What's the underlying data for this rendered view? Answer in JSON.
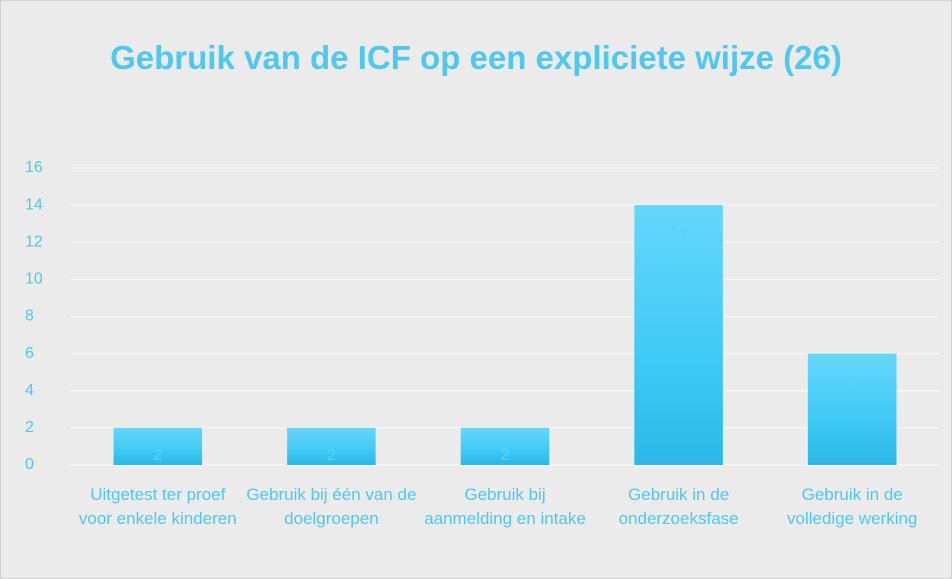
{
  "chart_data": {
    "type": "bar",
    "title": "Gebruik van de ICF op een expliciete wijze (26)",
    "categories": [
      "Uitgetest ter proef voor enkele kinderen",
      "Gebruik bij één van de doelgroepen",
      "Gebruik bij aanmelding en intake",
      "Gebruik in de onderzoeksfase",
      "Gebruik in de volledige werking"
    ],
    "values": [
      2,
      2,
      2,
      14,
      6
    ],
    "color": "#3fcaf5",
    "ylim": [
      0,
      16
    ],
    "yticks": [
      0,
      2,
      4,
      6,
      8,
      10,
      12,
      14,
      16
    ],
    "grid": true
  }
}
